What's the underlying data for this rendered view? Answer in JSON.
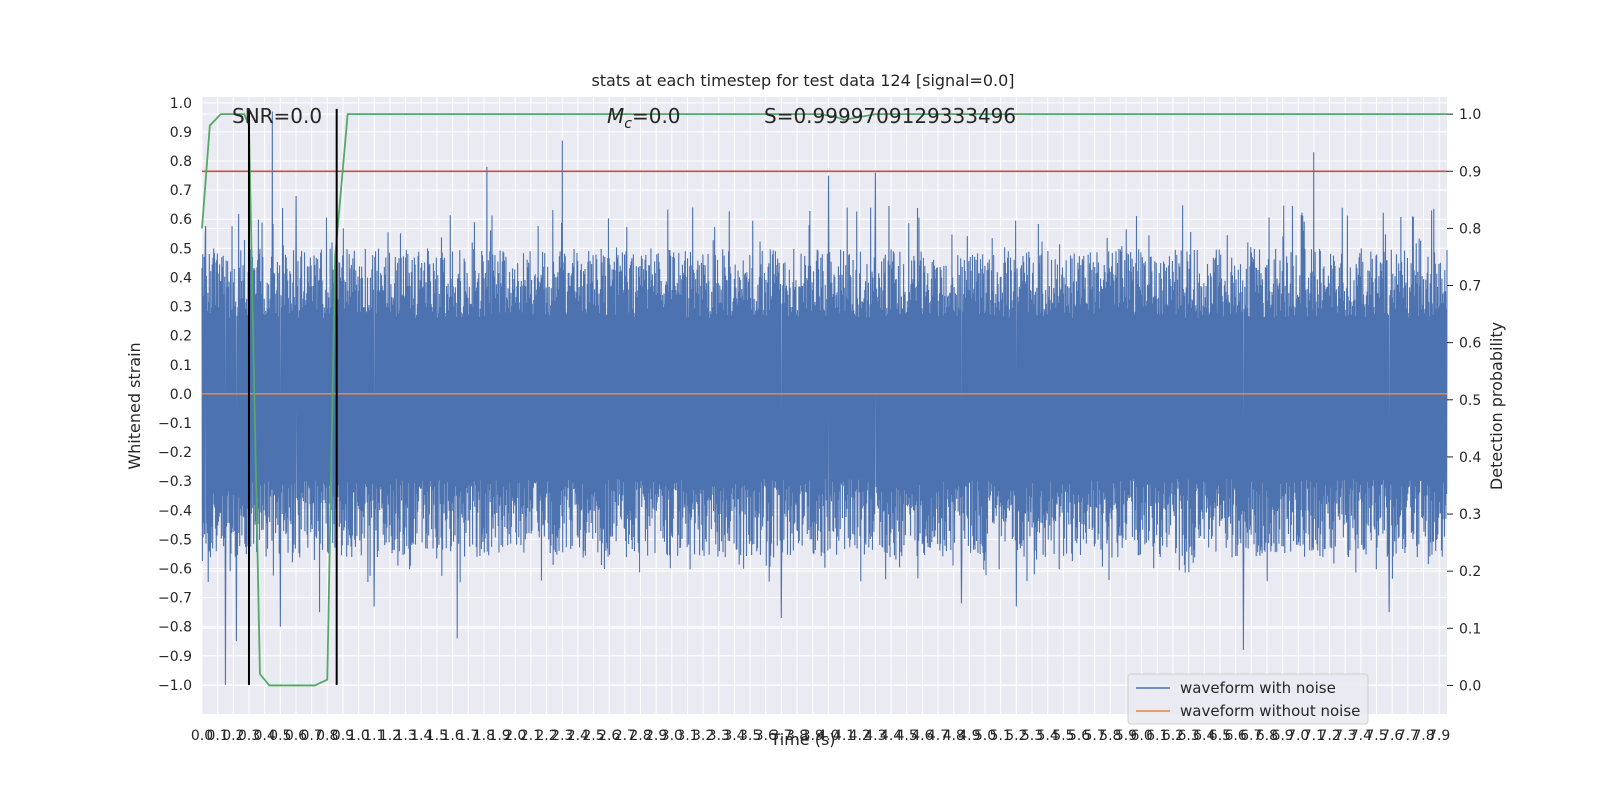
{
  "chart_data": {
    "type": "line",
    "title": "stats at each timestep for test data 124 [signal=0.0]",
    "xlabel": "Time (s)",
    "ylabel": "Whitened strain",
    "y2label": "Detection probability",
    "xlim": [
      0.0,
      7.95
    ],
    "ylim": [
      -1.1,
      1.02
    ],
    "y2lim": [
      -0.05,
      1.03
    ],
    "x_tick_labels": [
      "0.0",
      "0.1",
      "0.2",
      "0.3",
      "0.4",
      "0.5",
      "0.6",
      "0.7",
      "0.8",
      "0.9",
      "1.0",
      "1.1",
      "1.2",
      "1.3",
      "1.4",
      "1.5",
      "1.6",
      "1.7",
      "1.8",
      "1.9",
      "2.0",
      "2.1",
      "2.2",
      "2.3",
      "2.4",
      "2.5",
      "2.6",
      "2.7",
      "2.8",
      "2.9",
      "3.0",
      "3.1",
      "3.2",
      "3.3",
      "3.4",
      "3.5",
      "3.6",
      "3.7",
      "3.8",
      "3.9",
      "4.0",
      "4.1",
      "4.2",
      "4.3",
      "4.4",
      "4.5",
      "4.6",
      "4.7",
      "4.8",
      "4.9",
      "5.0",
      "5.1",
      "5.2",
      "5.3",
      "5.4",
      "5.5",
      "5.6",
      "5.7",
      "5.8",
      "5.9",
      "6.0",
      "6.1",
      "6.2",
      "6.3",
      "6.4",
      "6.5",
      "6.6",
      "6.7",
      "6.8",
      "6.9",
      "7.0",
      "7.1",
      "7.2",
      "7.3",
      "7.4",
      "7.5",
      "7.6",
      "7.7",
      "7.8",
      "7.9"
    ],
    "y_tick_labels": [
      "1.0",
      "0.9",
      "0.8",
      "0.7",
      "0.6",
      "0.5",
      "0.4",
      "0.3",
      "0.2",
      "0.1",
      "0.0",
      "−0.1",
      "−0.2",
      "−0.3",
      "−0.4",
      "−0.5",
      "−0.6",
      "−0.7",
      "−0.8",
      "−0.9",
      "−1.0"
    ],
    "y2_tick_labels": [
      "1.0",
      "0.9",
      "0.8",
      "0.7",
      "0.6",
      "0.5",
      "0.4",
      "0.3",
      "0.2",
      "0.1",
      "0.0"
    ],
    "annotations": {
      "snr": "SNR=0.0",
      "mc": "=0.0",
      "mc_symbol": "M",
      "mc_subscript": "c",
      "s": "S=0.9999709129333496"
    },
    "legend_position": "lower-right",
    "legend": [
      "waveform with noise",
      "waveform without noise"
    ],
    "colors": {
      "noise": "#4c72b0",
      "clean": "#dd8452",
      "probability": "#55a868",
      "threshold": "#c44e52",
      "markers": "#000000",
      "background": "#eaeaf2",
      "grid": "#ffffff"
    },
    "series": [
      {
        "name": "waveform with noise",
        "axis": "left",
        "envelope_upper_typical": 0.4,
        "envelope_lower_typical": -0.45,
        "spikes": [
          [
            0.02,
            0.55
          ],
          [
            0.15,
            -1.0
          ],
          [
            0.22,
            -0.85
          ],
          [
            0.3,
            0.72
          ],
          [
            0.45,
            0.97
          ],
          [
            0.5,
            -0.8
          ],
          [
            0.6,
            0.68
          ],
          [
            0.75,
            -0.75
          ],
          [
            0.83,
            0.52
          ],
          [
            1.1,
            -0.73
          ],
          [
            1.63,
            -0.84
          ],
          [
            1.82,
            0.78
          ],
          [
            2.3,
            0.87
          ],
          [
            3.7,
            -0.77
          ],
          [
            4.0,
            0.75
          ],
          [
            4.3,
            0.76
          ],
          [
            4.85,
            -0.72
          ],
          [
            5.2,
            -0.73
          ],
          [
            6.65,
            -0.88
          ],
          [
            7.1,
            0.83
          ],
          [
            7.58,
            -0.75
          ]
        ]
      },
      {
        "name": "waveform without noise",
        "axis": "left",
        "points": [
          [
            0.0,
            0.0
          ],
          [
            7.95,
            0.0
          ]
        ]
      },
      {
        "name": "detection probability",
        "axis": "right",
        "points": [
          [
            0.0,
            0.8
          ],
          [
            0.05,
            0.98
          ],
          [
            0.12,
            1.0
          ],
          [
            0.27,
            1.0
          ],
          [
            0.3,
            0.98
          ],
          [
            0.37,
            0.02
          ],
          [
            0.43,
            0.0
          ],
          [
            0.72,
            0.0
          ],
          [
            0.8,
            0.01
          ],
          [
            0.85,
            0.75
          ],
          [
            0.93,
            1.0
          ],
          [
            3.95,
            1.0
          ],
          [
            4.05,
            0.995
          ],
          [
            4.1,
            0.99
          ],
          [
            4.2,
            0.995
          ],
          [
            4.3,
            1.0
          ],
          [
            7.95,
            1.0
          ]
        ]
      },
      {
        "name": "detection threshold",
        "axis": "right",
        "points": [
          [
            0.0,
            0.9
          ],
          [
            7.95,
            0.9
          ]
        ]
      }
    ],
    "vertical_markers": [
      0.3,
      0.86
    ],
    "grid": true
  }
}
